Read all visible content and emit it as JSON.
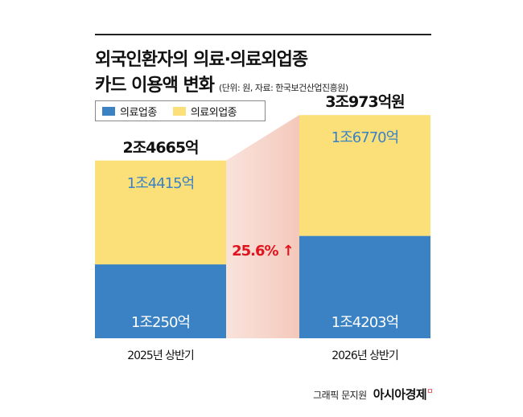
{
  "header": {
    "title_line1": "외국인환자의 의료·의료외업종",
    "title_line2": "카드 이용액 변화",
    "source_note": "(단위: 원, 자료: 한국보건산업진흥원)"
  },
  "chart_data": {
    "type": "bar",
    "stacked": true,
    "categories": [
      "2025년 상반기",
      "2026년 상반기"
    ],
    "series": [
      {
        "name": "의료업종",
        "values": [
          10250,
          14203
        ],
        "labels": [
          "1조250억",
          "1조4203억"
        ],
        "color": "#3b82c4"
      },
      {
        "name": "의료외업종",
        "values": [
          14415,
          16770
        ],
        "labels": [
          "1조4415억",
          "1조6770억"
        ],
        "color": "#fbe07a"
      }
    ],
    "totals": [
      24665,
      30973
    ],
    "total_labels": [
      "2조4665억",
      "3조973억원"
    ],
    "ylim": [
      0,
      33000
    ],
    "legend_position": "top-left",
    "annotation": {
      "text": "25.6%",
      "arrow": "↑",
      "color": "#e0141e"
    }
  },
  "footer": {
    "credit": "그래픽 문지원",
    "brand": "아시아경제",
    "brand_mark": "ㅁ"
  }
}
